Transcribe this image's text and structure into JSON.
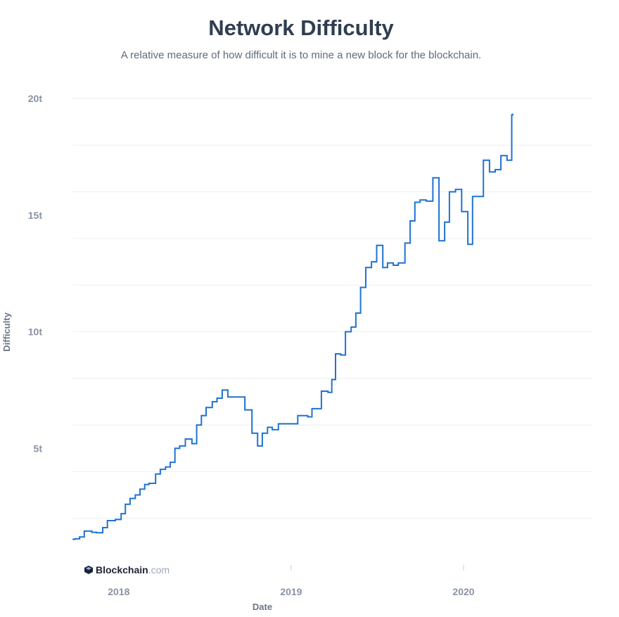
{
  "page": {
    "title": "Network Difficulty",
    "subtitle": "A relative measure of how difficult it is to mine a new block for the blockchain."
  },
  "watermark": {
    "brand": "Blockchain",
    "suffix": ".com",
    "icon": "blockchain-logo-icon"
  },
  "colors": {
    "line": "#1f72d1",
    "grid": "#eceff3",
    "tick_text": "#8893a3",
    "title": "#2f3e51"
  },
  "chart_data": {
    "type": "line",
    "title": "Network Difficulty",
    "subtitle": "A relative measure of how difficult it is to mine a new block for the blockchain.",
    "xlabel": "Date",
    "ylabel": "Difficulty",
    "ylim": [
      0,
      20
    ],
    "xlim": [
      "2017-09-25",
      "2020-10-01"
    ],
    "y_ticks": [
      {
        "value": 5,
        "label": "5t"
      },
      {
        "value": 10,
        "label": "10t"
      },
      {
        "value": 15,
        "label": "15t"
      },
      {
        "value": 20,
        "label": "20t"
      }
    ],
    "gridlines_y": [
      2,
      4,
      6,
      8,
      10,
      12,
      14,
      16,
      18,
      20
    ],
    "x_ticks": [
      {
        "date": "2018-01-01",
        "label": "2018"
      },
      {
        "date": "2019-01-01",
        "label": "2019"
      },
      {
        "date": "2020-01-01",
        "label": "2020"
      }
    ],
    "grid": true,
    "legend": "none",
    "step": true,
    "series": [
      {
        "values": [
          [
            "2017-09-25",
            1.1
          ],
          [
            "2017-10-01",
            1.12
          ],
          [
            "2017-10-10",
            1.2
          ],
          [
            "2017-10-20",
            1.45
          ],
          [
            "2017-11-05",
            1.4
          ],
          [
            "2017-11-15",
            1.38
          ],
          [
            "2017-11-28",
            1.6
          ],
          [
            "2017-12-08",
            1.9
          ],
          [
            "2017-12-25",
            1.95
          ],
          [
            "2018-01-06",
            2.2
          ],
          [
            "2018-01-15",
            2.6
          ],
          [
            "2018-01-25",
            2.85
          ],
          [
            "2018-02-05",
            3.0
          ],
          [
            "2018-02-15",
            3.25
          ],
          [
            "2018-02-25",
            3.45
          ],
          [
            "2018-03-06",
            3.5
          ],
          [
            "2018-03-20",
            3.9
          ],
          [
            "2018-03-30",
            4.1
          ],
          [
            "2018-04-10",
            4.2
          ],
          [
            "2018-04-20",
            4.4
          ],
          [
            "2018-04-30",
            5.0
          ],
          [
            "2018-05-10",
            5.1
          ],
          [
            "2018-05-22",
            5.4
          ],
          [
            "2018-06-05",
            5.2
          ],
          [
            "2018-06-15",
            6.0
          ],
          [
            "2018-06-25",
            6.4
          ],
          [
            "2018-07-05",
            6.75
          ],
          [
            "2018-07-18",
            7.0
          ],
          [
            "2018-07-28",
            7.15
          ],
          [
            "2018-08-08",
            7.5
          ],
          [
            "2018-08-20",
            7.2
          ],
          [
            "2018-09-10",
            7.2
          ],
          [
            "2018-09-25",
            6.65
          ],
          [
            "2018-10-10",
            5.65
          ],
          [
            "2018-10-22",
            5.1
          ],
          [
            "2018-11-01",
            5.65
          ],
          [
            "2018-11-12",
            5.9
          ],
          [
            "2018-11-22",
            5.8
          ],
          [
            "2018-12-05",
            6.05
          ],
          [
            "2018-12-30",
            6.05
          ],
          [
            "2019-01-15",
            6.4
          ],
          [
            "2019-02-05",
            6.35
          ],
          [
            "2019-02-14",
            6.7
          ],
          [
            "2019-03-06",
            7.45
          ],
          [
            "2019-03-20",
            7.4
          ],
          [
            "2019-03-28",
            7.95
          ],
          [
            "2019-04-05",
            9.05
          ],
          [
            "2019-04-16",
            9.0
          ],
          [
            "2019-04-26",
            10.0
          ],
          [
            "2019-05-08",
            10.2
          ],
          [
            "2019-05-18",
            10.8
          ],
          [
            "2019-05-28",
            11.9
          ],
          [
            "2019-06-08",
            12.75
          ],
          [
            "2019-06-20",
            13.0
          ],
          [
            "2019-07-01",
            13.7
          ],
          [
            "2019-07-14",
            12.75
          ],
          [
            "2019-07-24",
            12.95
          ],
          [
            "2019-08-05",
            12.85
          ],
          [
            "2019-08-16",
            12.95
          ],
          [
            "2019-08-30",
            13.8
          ],
          [
            "2019-09-10",
            14.75
          ],
          [
            "2019-09-20",
            15.55
          ],
          [
            "2019-10-01",
            15.65
          ],
          [
            "2019-10-14",
            15.6
          ],
          [
            "2019-10-28",
            16.6
          ],
          [
            "2019-11-10",
            13.9
          ],
          [
            "2019-11-22",
            14.7
          ],
          [
            "2019-12-02",
            16.0
          ],
          [
            "2019-12-15",
            16.1
          ],
          [
            "2019-12-28",
            15.15
          ],
          [
            "2020-01-10",
            13.75
          ],
          [
            "2020-01-20",
            15.8
          ],
          [
            "2020-02-12",
            17.35
          ],
          [
            "2020-02-25",
            16.85
          ],
          [
            "2020-03-08",
            16.95
          ],
          [
            "2020-03-20",
            17.55
          ],
          [
            "2020-04-02",
            17.35
          ],
          [
            "2020-04-12",
            19.3
          ],
          [
            "2020-04-14",
            19.35
          ]
        ]
      }
    ]
  }
}
